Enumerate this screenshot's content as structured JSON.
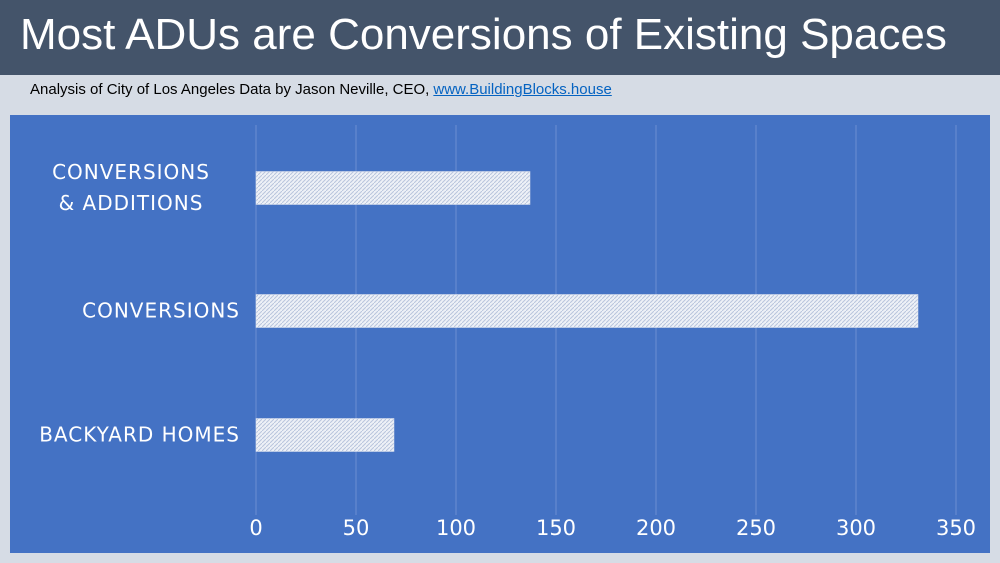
{
  "header": {
    "title": "Most ADUs are Conversions of Existing Spaces",
    "subtitle": "Analysis of City of Los Angeles Data by Jason Neville, CEO,",
    "link": "www.BuildingBlocks.house"
  },
  "chart_data": {
    "type": "hbar",
    "categories": [
      "CONVERSIONS\n& ADDITIONS",
      "CONVERSIONS",
      "BACKYARD HOMES"
    ],
    "values": [
      137,
      331,
      69
    ],
    "color": "#dfe4ee",
    "xlim": [
      0,
      350
    ],
    "xticks": [
      0,
      50,
      100,
      150,
      200,
      250,
      300,
      350
    ],
    "grid": true
  }
}
